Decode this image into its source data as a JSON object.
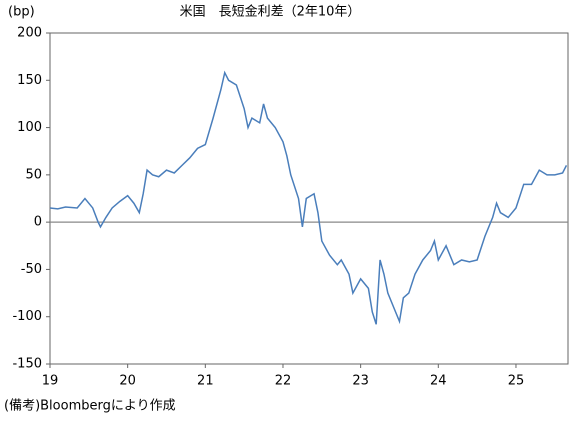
{
  "chart_data": {
    "type": "line",
    "title": "米国　長短金利差（2年10年）",
    "y_unit": "(bp)",
    "note": "(備考)Bloombergにより作成",
    "xlim": [
      19,
      25.67
    ],
    "xticks": [
      19,
      20,
      21,
      22,
      23,
      24,
      25
    ],
    "ylim": [
      -150,
      200
    ],
    "yticks": [
      -150,
      -100,
      -50,
      0,
      50,
      100,
      150,
      200
    ],
    "series": [
      {
        "color": "#4a7ebb",
        "x": [
          19.0,
          19.1,
          19.2,
          19.35,
          19.45,
          19.55,
          19.62,
          19.65,
          19.72,
          19.8,
          19.9,
          20.0,
          20.08,
          20.15,
          20.2,
          20.25,
          20.32,
          20.4,
          20.5,
          20.6,
          20.7,
          20.8,
          20.9,
          21.0,
          21.1,
          21.2,
          21.25,
          21.3,
          21.4,
          21.5,
          21.55,
          21.6,
          21.7,
          21.75,
          21.8,
          21.9,
          22.0,
          22.05,
          22.1,
          22.2,
          22.25,
          22.3,
          22.4,
          22.45,
          22.5,
          22.6,
          22.7,
          22.75,
          22.85,
          22.9,
          23.0,
          23.1,
          23.15,
          23.2,
          23.25,
          23.3,
          23.35,
          23.45,
          23.5,
          23.55,
          23.62,
          23.7,
          23.8,
          23.9,
          23.95,
          24.0,
          24.1,
          24.2,
          24.3,
          24.4,
          24.5,
          24.6,
          24.7,
          24.75,
          24.8,
          24.9,
          25.0,
          25.1,
          25.2,
          25.3,
          25.4,
          25.5,
          25.6,
          25.65
        ],
        "values": [
          15,
          14,
          16,
          15,
          25,
          15,
          0,
          -5,
          5,
          15,
          22,
          28,
          20,
          10,
          30,
          55,
          50,
          48,
          55,
          52,
          60,
          68,
          78,
          82,
          110,
          140,
          158,
          150,
          145,
          120,
          100,
          110,
          105,
          125,
          110,
          100,
          85,
          70,
          50,
          25,
          -5,
          25,
          30,
          10,
          -20,
          -35,
          -45,
          -40,
          -55,
          -75,
          -60,
          -70,
          -95,
          -108,
          -40,
          -55,
          -75,
          -95,
          -105,
          -80,
          -75,
          -55,
          -40,
          -30,
          -20,
          -40,
          -25,
          -45,
          -40,
          -42,
          -40,
          -15,
          5,
          20,
          10,
          5,
          15,
          40,
          40,
          55,
          50,
          50,
          52,
          60
        ]
      }
    ]
  }
}
